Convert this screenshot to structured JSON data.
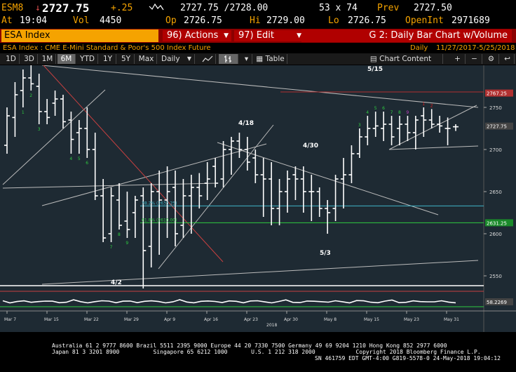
{
  "quote": {
    "ticker": "ESM8",
    "last_arrow": "↓",
    "last": "2727.75",
    "change": "+.25",
    "last_bid_ask": "2727.75 /2728.00",
    "size": "53 x 74",
    "prev_label": "Prev",
    "prev": "2727.50",
    "at_label": "At",
    "at_time": "19:04",
    "vol_label": "Vol",
    "vol": "4450",
    "op_label": "Op",
    "open": "2726.75",
    "hi_label": "Hi",
    "high": "2729.00",
    "lo_label": "Lo",
    "low": "2726.75",
    "openint_label": "OpenInt",
    "openint": "2971689"
  },
  "title_bar": {
    "security": "ESA Index",
    "actions_num": "96)",
    "actions_label": "Actions",
    "edit_num": "97)",
    "edit_label": "Edit",
    "chart_title": "G 2: Daily Bar Chart w/Volume"
  },
  "subtitle": {
    "description": "ESA Index : CME E-Mini Standard & Poor's 500 Index Future",
    "period": "Daily",
    "date_range": "11/27/2017-5/25/2018"
  },
  "toolbar": {
    "ranges": [
      "1D",
      "3D",
      "1M",
      "6M",
      "YTD",
      "1Y",
      "5Y",
      "Max"
    ],
    "active_range": "6M",
    "frequency": "Daily",
    "table_label": "Table",
    "chart_content_label": "Chart Content"
  },
  "chart_data": {
    "type": "bar",
    "title": "",
    "period": "Daily",
    "x_ticks": [
      "Mar 7",
      "Mar 15",
      "Mar 22",
      "Mar 29",
      "Apr 9",
      "Apr 16",
      "Apr 23",
      "Apr 30",
      "May 8",
      "May 15",
      "May 23",
      "May 31"
    ],
    "x_year_label": "2018",
    "y_ticks": [
      2550,
      2600,
      2650,
      2700,
      2750
    ],
    "ylim": [
      2535,
      2800
    ],
    "price_labels": [
      "2767.25",
      "2727.75",
      "2631.25"
    ],
    "volume_label": "58.2269",
    "annotations": [
      "5/15",
      "4/18",
      "4/30",
      "5/3",
      "4/2"
    ],
    "fib_labels": [
      "38.2% (2633.25)",
      "61.8% (2610.00)"
    ],
    "dates": [
      "3/7",
      "3/8",
      "3/9",
      "3/12",
      "3/13",
      "3/14",
      "3/15",
      "3/16",
      "3/19",
      "3/20",
      "3/21",
      "3/22",
      "3/23",
      "3/26",
      "3/27",
      "3/28",
      "3/29",
      "4/2",
      "4/3",
      "4/4",
      "4/5",
      "4/6",
      "4/9",
      "4/10",
      "4/11",
      "4/12",
      "4/13",
      "4/16",
      "4/17",
      "4/18",
      "4/19",
      "4/20",
      "4/23",
      "4/24",
      "4/25",
      "4/26",
      "4/27",
      "4/30",
      "5/1",
      "5/2",
      "5/3",
      "5/4",
      "5/7",
      "5/8",
      "5/9",
      "5/10",
      "5/11",
      "5/14",
      "5/15",
      "5/16",
      "5/17",
      "5/18",
      "5/21",
      "5/22",
      "5/23",
      "5/24",
      "5/25"
    ],
    "open": [
      2705,
      2738,
      2770,
      2785,
      2775,
      2745,
      2755,
      2760,
      2735,
      2720,
      2725,
      2700,
      2645,
      2600,
      2640,
      2615,
      2625,
      2645,
      2585,
      2650,
      2640,
      2655,
      2610,
      2645,
      2655,
      2660,
      2680,
      2665,
      2700,
      2710,
      2700,
      2690,
      2670,
      2665,
      2630,
      2650,
      2670,
      2665,
      2650,
      2650,
      2630,
      2630,
      2665,
      2670,
      2695,
      2715,
      2725,
      2725,
      2730,
      2725,
      2730,
      2720,
      2740,
      2735,
      2730,
      2725,
      2727
    ],
    "high": [
      2750,
      2780,
      2795,
      2800,
      2790,
      2760,
      2770,
      2765,
      2745,
      2735,
      2750,
      2720,
      2665,
      2655,
      2660,
      2650,
      2645,
      2655,
      2660,
      2675,
      2680,
      2675,
      2665,
      2670,
      2672,
      2685,
      2690,
      2710,
      2715,
      2720,
      2715,
      2700,
      2690,
      2685,
      2665,
      2675,
      2680,
      2680,
      2670,
      2655,
      2640,
      2670,
      2690,
      2705,
      2725,
      2740,
      2745,
      2745,
      2740,
      2740,
      2740,
      2740,
      2750,
      2748,
      2740,
      2738,
      2730
    ],
    "low": [
      2695,
      2715,
      2750,
      2770,
      2730,
      2730,
      2740,
      2725,
      2695,
      2695,
      2690,
      2640,
      2590,
      2590,
      2605,
      2595,
      2595,
      2535,
      2560,
      2575,
      2595,
      2585,
      2595,
      2600,
      2630,
      2640,
      2655,
      2655,
      2670,
      2690,
      2675,
      2660,
      2620,
      2610,
      2610,
      2625,
      2640,
      2625,
      2615,
      2620,
      2600,
      2615,
      2630,
      2660,
      2690,
      2705,
      2715,
      2710,
      2705,
      2705,
      2710,
      2700,
      2715,
      2725,
      2720,
      2705,
      2722
    ],
    "close": [
      2740,
      2765,
      2785,
      2778,
      2745,
      2738,
      2760,
      2733,
      2712,
      2725,
      2700,
      2645,
      2595,
      2645,
      2610,
      2605,
      2640,
      2580,
      2650,
      2640,
      2650,
      2600,
      2645,
      2655,
      2645,
      2665,
      2660,
      2700,
      2710,
      2700,
      2685,
      2670,
      2665,
      2630,
      2650,
      2665,
      2665,
      2650,
      2650,
      2630,
      2625,
      2665,
      2670,
      2695,
      2715,
      2725,
      2728,
      2730,
      2715,
      2730,
      2720,
      2735,
      2735,
      2730,
      2728,
      2725,
      2727
    ],
    "volume_hint": "flat volume line"
  },
  "footer": {
    "line1": "Australia 61 2 9777 8600 Brazil 5511 2395 9000 Europe 44 20 7330 7500 Germany 49 69 9204 1210 Hong Kong 852 2977 6000",
    "line2": "Japan 81 3 3201 8900          Singapore 65 6212 1000       U.S. 1 212 318 2000            Copyright 2018 Bloomberg Finance L.P.",
    "line3": "SN 461759 EDT  GMT-4:00 G819-5578-0 24-May-2018 19:04:12"
  },
  "colors": {
    "orange": "#f5a300",
    "title_red": "#8b0000",
    "bar_white": "#ffffff",
    "chart_bg": "#1e2a33",
    "trend_red": "#c84040",
    "cyan_line": "#3fb5c8",
    "green_line": "#2ecc40",
    "counter_green": "#2ecc40",
    "counter_magenta": "#c040c0",
    "counter_red": "#e02020"
  }
}
